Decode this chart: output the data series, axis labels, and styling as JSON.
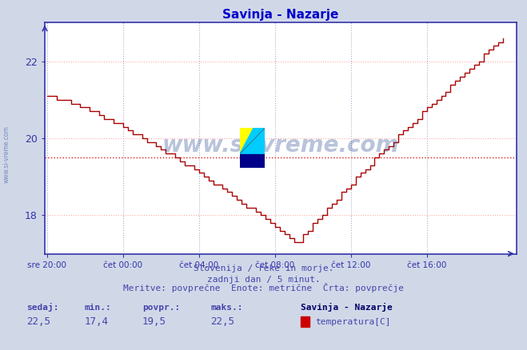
{
  "title": "Savinja - Nazarje",
  "title_color": "#0000cc",
  "bg_color": "#d0d8e8",
  "plot_bg_color": "#ffffff",
  "line_color": "#aa0000",
  "grid_color_h": "#ffaaaa",
  "grid_color_v": "#aaaacc",
  "xlabel_ticks": [
    "sre 20:00",
    "čet 00:00",
    "čet 04:00",
    "čet 08:00",
    "čet 12:00",
    "čet 16:00"
  ],
  "yticks": [
    18,
    20,
    22
  ],
  "ymin": 17.0,
  "ymax": 23.0,
  "xlim_min": -0.005,
  "xlim_max": 1.03,
  "avg_line": 19.5,
  "avg_line_color": "#cc0000",
  "footer_line1": "Slovenija / reke in morje.",
  "footer_line2": "zadnji dan / 5 minut.",
  "footer_line3": "Meritve: povprečne  Enote: metrične  Črta: povprečje",
  "footer_color": "#4444aa",
  "stats_labels": [
    "sedaj:",
    "min.:",
    "povpr.:",
    "maks.:"
  ],
  "stats_values": [
    "22,5",
    "17,4",
    "19,5",
    "22,5"
  ],
  "legend_label": "Savinja - Nazarje",
  "legend_series": "temperatura[C]",
  "legend_color": "#cc0000",
  "watermark_text": "www.si-vreme.com",
  "watermark_color": "#1a3a8a",
  "watermark_alpha": 0.3,
  "axis_color": "#3333aa",
  "tick_color": "#3333aa",
  "sidebar_text": "www.si-vreme.com"
}
